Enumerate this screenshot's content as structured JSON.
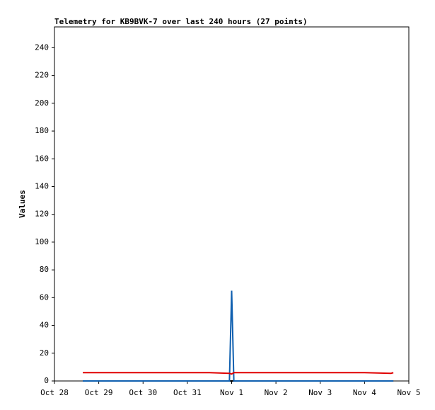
{
  "chart_data": {
    "type": "line",
    "title": "Telemetry for KB9BVK-7 over last 240 hours (27 points)",
    "y_label": "Values",
    "x": [
      0.64,
      1.5,
      2.5,
      3.5,
      3.95,
      4.0,
      4.05,
      5,
      6,
      7,
      7.6,
      7.65
    ],
    "series": [
      {
        "name": "red",
        "color": "#e00000",
        "values": [
          6,
          6,
          6,
          6,
          5.5,
          5,
          6,
          6,
          6,
          6,
          5.5,
          6
        ]
      },
      {
        "name": "blue",
        "color": "#1060b0",
        "values": [
          0,
          0,
          0,
          0,
          0,
          65,
          0,
          0,
          0,
          0,
          0,
          0
        ]
      },
      {
        "name": "black",
        "color": "#000000",
        "values": [
          0,
          0,
          0,
          0,
          0,
          0,
          0,
          0,
          0,
          0,
          0,
          0
        ]
      }
    ],
    "xlim": [
      0,
      8
    ],
    "xticks": [
      {
        "value": 0,
        "label": "Oct 28"
      },
      {
        "value": 1,
        "label": "Oct 29"
      },
      {
        "value": 2,
        "label": "Oct 30"
      },
      {
        "value": 3,
        "label": "Oct 31"
      },
      {
        "value": 4,
        "label": "Nov 1"
      },
      {
        "value": 5,
        "label": "Nov 2"
      },
      {
        "value": 6,
        "label": "Nov 3"
      },
      {
        "value": 7,
        "label": "Nov 4"
      },
      {
        "value": 8,
        "label": "Nov 5"
      }
    ],
    "ylim": [
      0,
      255
    ],
    "yticks": [
      0,
      20,
      40,
      60,
      80,
      100,
      120,
      140,
      160,
      180,
      200,
      220,
      240
    ]
  }
}
